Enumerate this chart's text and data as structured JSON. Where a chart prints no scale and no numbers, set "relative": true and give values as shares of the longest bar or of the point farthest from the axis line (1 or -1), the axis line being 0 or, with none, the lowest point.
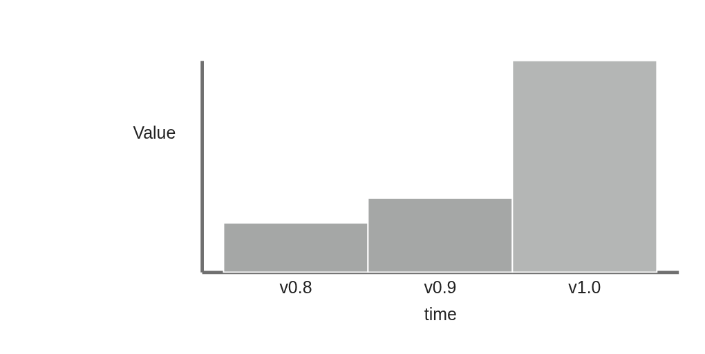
{
  "chart_data": {
    "type": "bar",
    "relative": true,
    "xlabel": "time",
    "ylabel": "Value",
    "categories": [
      "v0.8",
      "v0.9",
      "v1.0"
    ],
    "values": [
      0.233,
      0.35,
      1
    ],
    "colors": [
      "#a5a7a6",
      "#a5a7a6",
      "#b4b6b5"
    ],
    "grid": false
  }
}
